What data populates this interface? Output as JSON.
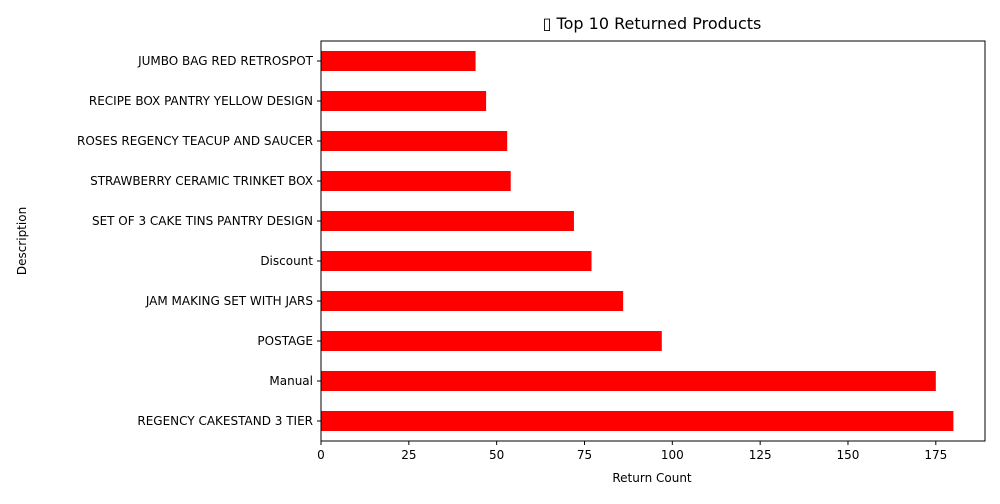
{
  "chart_data": {
    "type": "bar",
    "orientation": "horizontal",
    "title": "▯ Top 10 Returned Products",
    "xlabel": "Return Count",
    "ylabel": "Description",
    "xlim": [
      0,
      189
    ],
    "xticks": [
      0,
      25,
      50,
      75,
      100,
      125,
      150,
      175
    ],
    "grid": false,
    "bar_color": "#ff0000",
    "categories": [
      "REGENCY CAKESTAND 3 TIER",
      "Manual",
      "POSTAGE",
      "JAM MAKING SET WITH JARS",
      "Discount",
      "SET OF 3 CAKE TINS PANTRY DESIGN ",
      "STRAWBERRY CERAMIC TRINKET BOX",
      "ROSES REGENCY TEACUP AND SAUCER ",
      "RECIPE BOX PANTRY YELLOW DESIGN",
      "JUMBO BAG RED RETROSPOT"
    ],
    "values": [
      180,
      175,
      97,
      86,
      77,
      72,
      54,
      53,
      47,
      44
    ]
  }
}
